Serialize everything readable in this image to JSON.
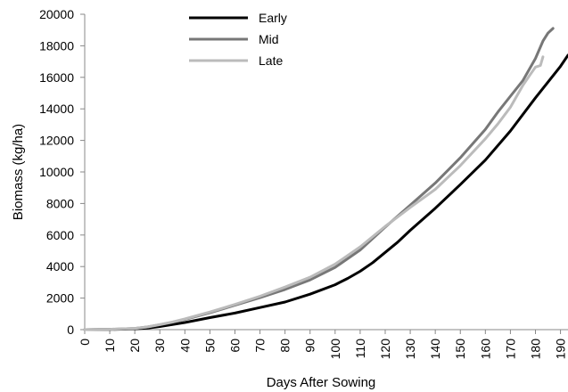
{
  "chart_data": {
    "type": "line",
    "xlabel": "Days After Sowing",
    "ylabel": "Biomass (kg/ha)",
    "xlim": [
      0,
      193
    ],
    "ylim": [
      0,
      20000
    ],
    "x_ticks": [
      0,
      10,
      20,
      30,
      40,
      50,
      60,
      70,
      80,
      90,
      100,
      110,
      120,
      130,
      140,
      150,
      160,
      170,
      180,
      190
    ],
    "y_ticks": [
      0,
      2000,
      4000,
      6000,
      8000,
      10000,
      12000,
      14000,
      16000,
      18000,
      20000
    ],
    "grid": false,
    "legend_position": "top-center",
    "series": [
      {
        "name": "Early",
        "color": "#000000",
        "x": [
          0,
          10,
          20,
          25,
          30,
          35,
          40,
          50,
          60,
          70,
          80,
          90,
          100,
          105,
          110,
          115,
          120,
          125,
          130,
          140,
          150,
          160,
          170,
          180,
          190,
          193
        ],
        "y": [
          0,
          10,
          50,
          100,
          200,
          320,
          450,
          760,
          1050,
          1400,
          1750,
          2250,
          2850,
          3250,
          3700,
          4250,
          4900,
          5550,
          6300,
          7700,
          9200,
          10750,
          12600,
          14700,
          16700,
          17400
        ]
      },
      {
        "name": "Mid",
        "color": "#777777",
        "x": [
          0,
          10,
          20,
          25,
          30,
          35,
          40,
          50,
          60,
          70,
          80,
          90,
          100,
          110,
          120,
          130,
          140,
          150,
          160,
          165,
          170,
          175,
          180,
          183,
          185,
          187
        ],
        "y": [
          0,
          20,
          80,
          170,
          310,
          470,
          650,
          1070,
          1550,
          2030,
          2550,
          3150,
          3950,
          5050,
          6500,
          7900,
          9300,
          10900,
          12700,
          13800,
          14800,
          15800,
          17200,
          18300,
          18800,
          19100
        ]
      },
      {
        "name": "Late",
        "color": "#bbbbbb",
        "x": [
          0,
          10,
          20,
          25,
          30,
          35,
          40,
          50,
          60,
          70,
          80,
          90,
          100,
          110,
          120,
          130,
          140,
          150,
          160,
          165,
          170,
          175,
          178,
          180,
          182,
          183
        ],
        "y": [
          0,
          20,
          80,
          170,
          320,
          480,
          680,
          1120,
          1600,
          2120,
          2700,
          3320,
          4150,
          5250,
          6550,
          7750,
          8900,
          10400,
          12100,
          13050,
          14100,
          15500,
          16200,
          16650,
          16750,
          17300
        ]
      }
    ]
  }
}
